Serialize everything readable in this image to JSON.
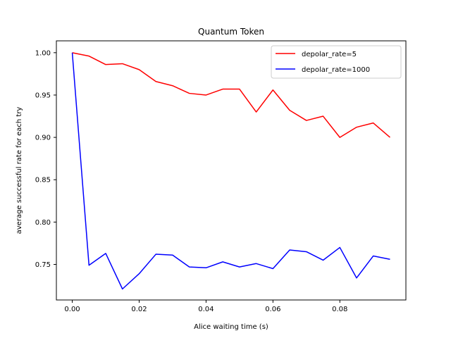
{
  "chart_data": {
    "type": "line",
    "title": "Quantum Token",
    "xlabel": "Alice waiting time (s)",
    "ylabel": "average successful rate for each try",
    "xlim": [
      -0.00475,
      0.09975
    ],
    "ylim": [
      0.708,
      1.014
    ],
    "xticks": [
      0.0,
      0.02,
      0.04,
      0.06,
      0.08
    ],
    "xtick_labels": [
      "0.00",
      "0.02",
      "0.04",
      "0.06",
      "0.08"
    ],
    "yticks": [
      0.75,
      0.8,
      0.85,
      0.9,
      0.95,
      1.0
    ],
    "ytick_labels": [
      "0.75",
      "0.80",
      "0.85",
      "0.90",
      "0.95",
      "1.00"
    ],
    "grid": false,
    "legend_position": "top-right",
    "x": [
      0.0,
      0.005,
      0.01,
      0.015,
      0.02,
      0.025,
      0.03,
      0.035,
      0.04,
      0.045,
      0.05,
      0.055,
      0.06,
      0.065,
      0.07,
      0.075,
      0.08,
      0.085,
      0.09,
      0.095
    ],
    "series": [
      {
        "name": "depolar_rate=5",
        "color": "#ff0000",
        "values": [
          1.0,
          0.996,
          0.986,
          0.987,
          0.98,
          0.966,
          0.961,
          0.952,
          0.95,
          0.957,
          0.957,
          0.93,
          0.956,
          0.932,
          0.92,
          0.925,
          0.9,
          0.912,
          0.917,
          0.9
        ]
      },
      {
        "name": "depolar_rate=1000",
        "color": "#0000ff",
        "values": [
          1.0,
          0.749,
          0.763,
          0.721,
          0.739,
          0.762,
          0.761,
          0.747,
          0.746,
          0.753,
          0.747,
          0.751,
          0.745,
          0.767,
          0.765,
          0.755,
          0.77,
          0.734,
          0.76,
          0.756
        ]
      }
    ]
  }
}
